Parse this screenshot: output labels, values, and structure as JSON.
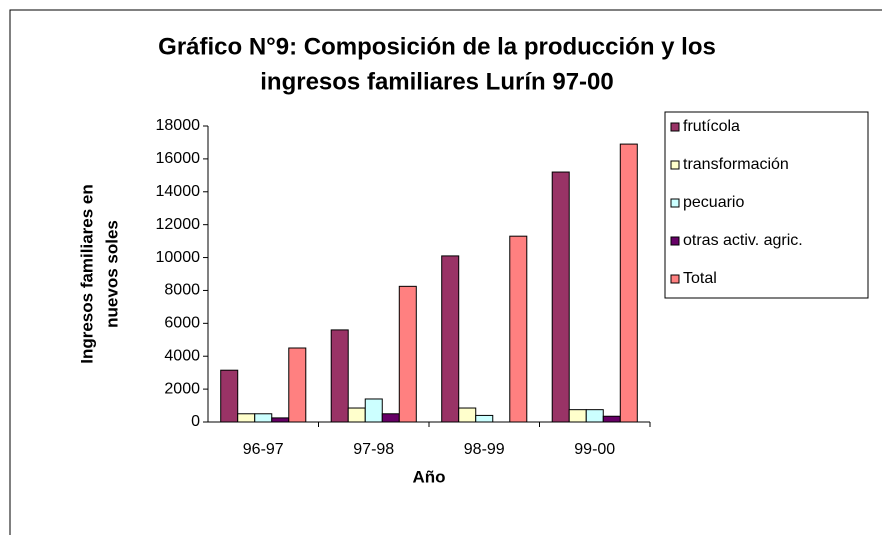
{
  "chart_data": {
    "type": "bar",
    "title": [
      "Gráfico N°9: Composición de la producción y los",
      "ingresos familiares Lurín 97-00"
    ],
    "y_label": [
      "Ingresos familiares en",
      "nuevos soles"
    ],
    "x_label": "Año",
    "categories": [
      "96-97",
      "97-98",
      "98-99",
      "99-00"
    ],
    "series": [
      {
        "name": "frutícola",
        "color": "#993366",
        "values": [
          3150,
          5600,
          10100,
          15200
        ]
      },
      {
        "name": "transformación",
        "color": "#ffffcc",
        "values": [
          500,
          850,
          850,
          750
        ]
      },
      {
        "name": "pecuario",
        "color": "#ccffff",
        "values": [
          500,
          1400,
          400,
          750
        ]
      },
      {
        "name": "otras activ. agric.",
        "color": "#660066",
        "values": [
          250,
          500,
          0,
          350
        ]
      },
      {
        "name": "Total",
        "color": "#ff8080",
        "values": [
          4500,
          8250,
          11300,
          16900
        ]
      }
    ],
    "ylim": [
      0,
      18000
    ],
    "yticks": [
      0,
      2000,
      4000,
      6000,
      8000,
      10000,
      12000,
      14000,
      16000,
      18000
    ],
    "grid": false,
    "legend": "right"
  }
}
